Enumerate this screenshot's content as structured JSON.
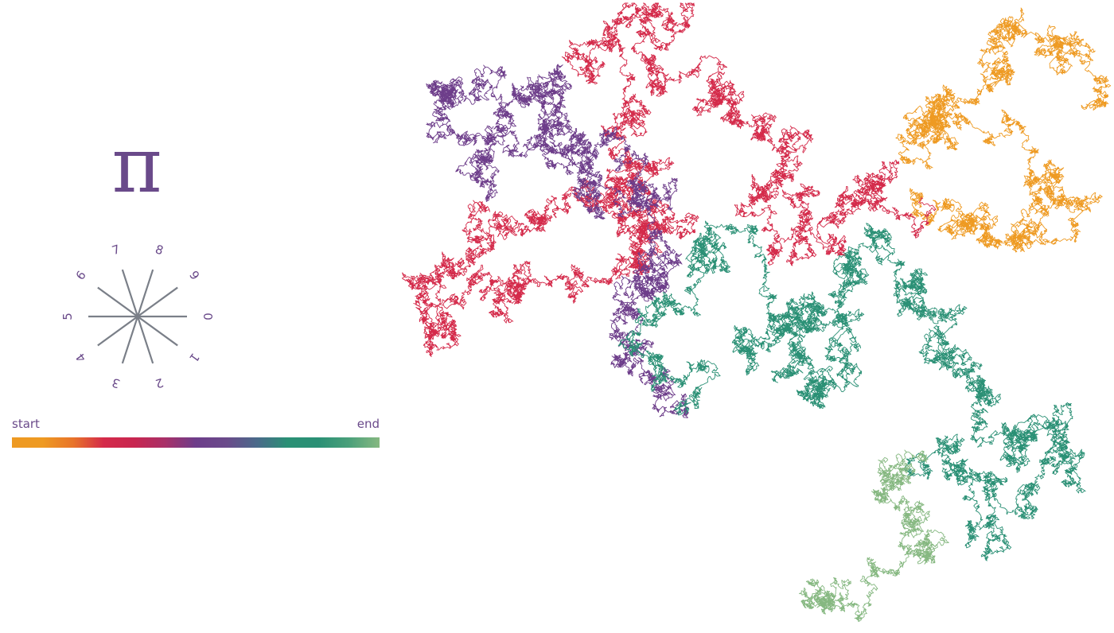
{
  "pi_symbol": "π",
  "compass": {
    "digits": [
      "0",
      "1",
      "2",
      "3",
      "4",
      "5",
      "6",
      "7",
      "8",
      "9"
    ],
    "line_color": "#7a7f88",
    "label_color": "#6a4a8a"
  },
  "legend": {
    "start_label": "start",
    "end_label": "end",
    "gradient_colors": [
      "#ee9a22",
      "#ee9a22",
      "#e8742a",
      "#d42a4a",
      "#c82650",
      "#a83068",
      "#6d3d8a",
      "#6a4a8a",
      "#4a6a8a",
      "#2a9075",
      "#2a9075",
      "#4aa07a",
      "#86b881"
    ]
  },
  "walk": {
    "segments": [
      {
        "color": "#ee9a22",
        "waypoints": [
          [
            1370,
            130
          ],
          [
            1310,
            70
          ],
          [
            1255,
            45
          ],
          [
            1240,
            110
          ],
          [
            1180,
            150
          ],
          [
            1140,
            200
          ],
          [
            1240,
            180
          ],
          [
            1330,
            220
          ],
          [
            1370,
            260
          ],
          [
            1290,
            300
          ],
          [
            1180,
            290
          ],
          [
            1160,
            250
          ]
        ]
      },
      {
        "color": "#d42a4a",
        "waypoints": [
          [
            1160,
            250
          ],
          [
            1120,
            220
          ],
          [
            1080,
            260
          ],
          [
            1060,
            310
          ],
          [
            1000,
            300
          ],
          [
            960,
            240
          ],
          [
            1010,
            190
          ],
          [
            960,
            150
          ],
          [
            900,
            130
          ],
          [
            850,
            100
          ],
          [
            860,
            40
          ],
          [
            820,
            20
          ],
          [
            770,
            60
          ],
          [
            740,
            90
          ],
          [
            790,
            140
          ],
          [
            820,
            210
          ],
          [
            870,
            290
          ],
          [
            800,
            320
          ],
          [
            720,
            360
          ],
          [
            650,
            380
          ],
          [
            570,
            420
          ],
          [
            530,
            400
          ],
          [
            560,
            330
          ],
          [
            620,
            300
          ],
          [
            690,
            280
          ],
          [
            740,
            250
          ],
          [
            780,
            220
          ],
          [
            840,
            260
          ]
        ]
      },
      {
        "color": "#6d3d8a",
        "waypoints": [
          [
            840,
            260
          ],
          [
            800,
            240
          ],
          [
            740,
            200
          ],
          [
            690,
            150
          ],
          [
            700,
            90
          ],
          [
            640,
            130
          ],
          [
            560,
            110
          ],
          [
            550,
            170
          ],
          [
            610,
            200
          ],
          [
            680,
            180
          ],
          [
            740,
            230
          ],
          [
            780,
            270
          ],
          [
            820,
            300
          ],
          [
            850,
            330
          ],
          [
            800,
            380
          ],
          [
            790,
            430
          ],
          [
            820,
            480
          ],
          [
            850,
            520
          ]
        ]
      },
      {
        "color": "#2a9075",
        "waypoints": [
          [
            850,
            520
          ],
          [
            830,
            450
          ],
          [
            850,
            380
          ],
          [
            900,
            330
          ],
          [
            960,
            360
          ],
          [
            1010,
            380
          ],
          [
            1060,
            400
          ],
          [
            1080,
            440
          ],
          [
            1030,
            500
          ],
          [
            980,
            470
          ],
          [
            940,
            430
          ],
          [
            1000,
            420
          ],
          [
            1060,
            380
          ],
          [
            1110,
            330
          ],
          [
            1100,
            310
          ],
          [
            1160,
            350
          ],
          [
            1200,
            400
          ],
          [
            1210,
            450
          ],
          [
            1240,
            480
          ],
          [
            1230,
            540
          ],
          [
            1280,
            560
          ],
          [
            1330,
            530
          ],
          [
            1340,
            580
          ],
          [
            1300,
            640
          ],
          [
            1240,
            660
          ],
          [
            1220,
            600
          ],
          [
            1200,
            560
          ],
          [
            1160,
            580
          ]
        ]
      },
      {
        "color": "#86b881",
        "waypoints": [
          [
            1160,
            580
          ],
          [
            1120,
            590
          ],
          [
            1140,
            640
          ],
          [
            1150,
            700
          ],
          [
            1100,
            720
          ],
          [
            1060,
            750
          ],
          [
            1030,
            760
          ],
          [
            1020,
            740
          ]
        ]
      }
    ]
  }
}
